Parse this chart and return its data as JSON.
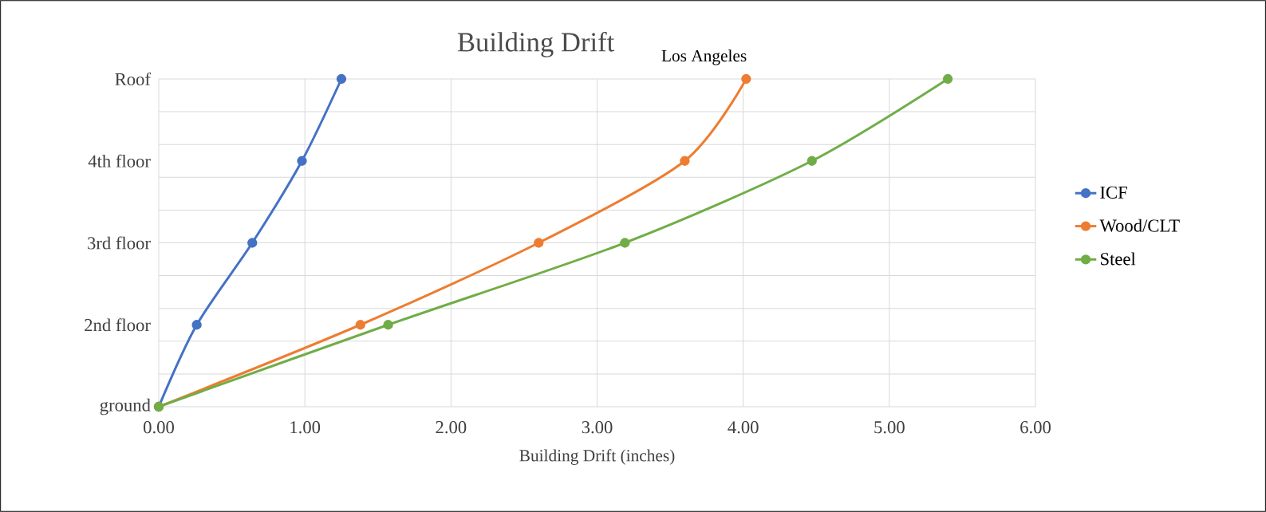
{
  "chart_data": {
    "type": "line",
    "orientation": "horizontal",
    "title": "Building Drift",
    "subtitle": "Los Angeles",
    "xlabel": "Building Drift (inches)",
    "categories": [
      "Roof",
      "4th floor",
      "3rd floor",
      "2nd floor",
      "ground"
    ],
    "xlim": [
      0,
      6
    ],
    "xticks": [
      {
        "value": 0,
        "label": "0.00"
      },
      {
        "value": 1,
        "label": "1.00"
      },
      {
        "value": 2,
        "label": "2.00"
      },
      {
        "value": 3,
        "label": "3.00"
      },
      {
        "value": 4,
        "label": "4.00"
      },
      {
        "value": 5,
        "label": "5.00"
      },
      {
        "value": 6,
        "label": "6.00"
      }
    ],
    "grid": true,
    "legend": "right",
    "marker": "circle",
    "line_style": "solid",
    "series": [
      {
        "name": "ICF",
        "color": "#4472c4",
        "values": [
          1.25,
          0.98,
          0.64,
          0.26,
          0
        ]
      },
      {
        "name": "Wood/CLT",
        "color": "#ed7d31",
        "values": [
          4.02,
          3.6,
          2.6,
          1.38,
          0
        ]
      },
      {
        "name": "Steel",
        "color": "#70ad47",
        "values": [
          5.4,
          4.47,
          3.19,
          1.57,
          0
        ]
      }
    ]
  }
}
